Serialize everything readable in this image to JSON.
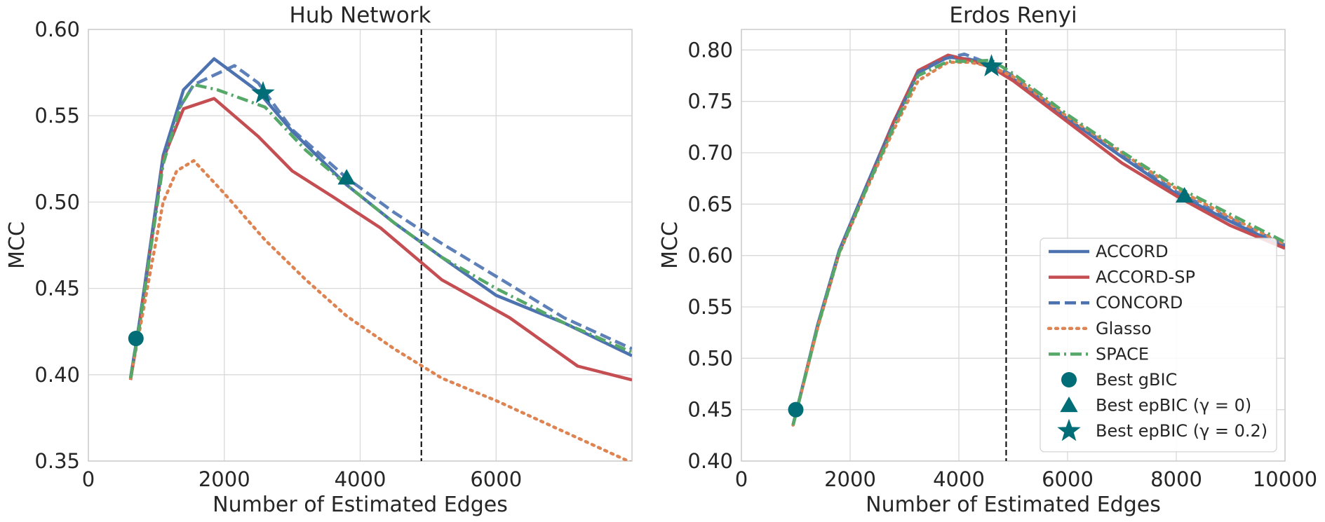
{
  "chart_data": [
    {
      "type": "line",
      "title": "Hub Network",
      "xlabel": "Number of Estimated Edges",
      "ylabel": "MCC",
      "xlim": [
        0,
        8000
      ],
      "ylim": [
        0.35,
        0.6
      ],
      "xticks": [
        0,
        2000,
        4000,
        6000
      ],
      "xtick_labels": [
        "0",
        "2000",
        "4000",
        "6000"
      ],
      "yticks": [
        0.35,
        0.4,
        0.45,
        0.5,
        0.55,
        0.6
      ],
      "ytick_labels": [
        "0.35",
        "0.40",
        "0.45",
        "0.50",
        "0.55",
        "0.60"
      ],
      "grid": true,
      "vline": 4900,
      "series": [
        {
          "name": "ACCORD",
          "color": "#4c72b0",
          "style": "solid",
          "x": [
            620,
            750,
            1100,
            1400,
            1850,
            2500,
            3000,
            3800,
            4500,
            5200,
            6000,
            7000,
            8000
          ],
          "y": [
            0.398,
            0.43,
            0.527,
            0.565,
            0.583,
            0.564,
            0.541,
            0.51,
            0.488,
            0.468,
            0.446,
            0.43,
            0.411
          ]
        },
        {
          "name": "ACCORD-SP",
          "color": "#c44e52",
          "style": "solid",
          "x": [
            620,
            750,
            1100,
            1400,
            1850,
            2500,
            3000,
            3600,
            4300,
            5200,
            6200,
            7200,
            8000
          ],
          "y": [
            0.397,
            0.428,
            0.525,
            0.554,
            0.56,
            0.538,
            0.518,
            0.503,
            0.485,
            0.455,
            0.433,
            0.405,
            0.397
          ]
        },
        {
          "name": "CONCORD",
          "color": "#4c72b0",
          "style": "dashed",
          "x": [
            620,
            750,
            1100,
            1300,
            1550,
            2150,
            2500,
            3000,
            3800,
            4500,
            5200,
            6000,
            7000,
            8000
          ],
          "y": [
            0.398,
            0.43,
            0.525,
            0.552,
            0.568,
            0.579,
            0.569,
            0.542,
            0.514,
            0.494,
            0.476,
            0.457,
            0.433,
            0.415
          ]
        },
        {
          "name": "Glasso",
          "color": "#dd8452",
          "style": "dotted",
          "x": [
            620,
            750,
            1100,
            1300,
            1550,
            2000,
            2600,
            3200,
            3800,
            4500,
            5200,
            6000,
            7000,
            8000
          ],
          "y": [
            0.398,
            0.425,
            0.5,
            0.518,
            0.524,
            0.505,
            0.478,
            0.455,
            0.434,
            0.415,
            0.398,
            0.385,
            0.367,
            0.349
          ]
        },
        {
          "name": "SPACE",
          "color": "#55a868",
          "style": "dashdot",
          "x": [
            620,
            750,
            1100,
            1350,
            1550,
            1900,
            2600,
            3200,
            3800,
            4500,
            5200,
            6000,
            7000,
            8000
          ],
          "y": [
            0.398,
            0.428,
            0.522,
            0.555,
            0.568,
            0.565,
            0.555,
            0.53,
            0.51,
            0.488,
            0.468,
            0.45,
            0.43,
            0.413
          ]
        }
      ],
      "markers": [
        {
          "name": "Best gBIC",
          "shape": "circle",
          "x": 700,
          "y": 0.421
        },
        {
          "name": "Best epBIC (γ = 0)",
          "shape": "triangle",
          "x": 3800,
          "y": 0.514
        },
        {
          "name": "Best epBIC (γ = 0.2)",
          "shape": "star",
          "x": 2570,
          "y": 0.563
        }
      ]
    },
    {
      "type": "line",
      "title": "Erdos Renyi",
      "xlabel": "Number of Estimated Edges",
      "ylabel": "MCC",
      "xlim": [
        0,
        10000
      ],
      "ylim": [
        0.4,
        0.82
      ],
      "xticks": [
        0,
        2000,
        4000,
        6000,
        8000,
        10000
      ],
      "xtick_labels": [
        "0",
        "2000",
        "4000",
        "6000",
        "8000",
        "10000"
      ],
      "yticks": [
        0.4,
        0.45,
        0.5,
        0.55,
        0.6,
        0.65,
        0.7,
        0.75,
        0.8
      ],
      "ytick_labels": [
        "0.40",
        "0.45",
        "0.50",
        "0.55",
        "0.60",
        "0.65",
        "0.70",
        "0.75",
        "0.80"
      ],
      "grid": true,
      "vline": 4870,
      "legend_position": "lower-right",
      "series": [
        {
          "name": "ACCORD",
          "color": "#4c72b0",
          "style": "solid",
          "x": [
            950,
            1400,
            1800,
            2300,
            2800,
            3250,
            3800,
            4200,
            4600,
            5000,
            6000,
            7000,
            8000,
            9000,
            10000
          ],
          "y": [
            0.435,
            0.532,
            0.605,
            0.668,
            0.73,
            0.778,
            0.793,
            0.791,
            0.785,
            0.772,
            0.733,
            0.696,
            0.66,
            0.633,
            0.608
          ]
        },
        {
          "name": "ACCORD-SP",
          "color": "#c44e52",
          "style": "solid",
          "x": [
            950,
            1400,
            1800,
            2300,
            2800,
            3250,
            3800,
            4200,
            4600,
            5000,
            6000,
            7000,
            8000,
            9000,
            10000
          ],
          "y": [
            0.435,
            0.53,
            0.603,
            0.666,
            0.73,
            0.78,
            0.795,
            0.79,
            0.783,
            0.77,
            0.73,
            0.69,
            0.658,
            0.629,
            0.607
          ]
        },
        {
          "name": "CONCORD",
          "color": "#4c72b0",
          "style": "dashed",
          "x": [
            950,
            1400,
            1800,
            2300,
            2800,
            3250,
            3700,
            4100,
            4600,
            5000,
            6000,
            7000,
            8000,
            9000,
            10000
          ],
          "y": [
            0.435,
            0.531,
            0.604,
            0.667,
            0.728,
            0.778,
            0.791,
            0.796,
            0.786,
            0.775,
            0.734,
            0.698,
            0.662,
            0.636,
            0.61
          ]
        },
        {
          "name": "Glasso",
          "color": "#dd8452",
          "style": "dotted",
          "x": [
            950,
            1400,
            1800,
            2300,
            2800,
            3250,
            3800,
            4200,
            4600,
            5000,
            6000,
            7000,
            8000,
            9000,
            10000
          ],
          "y": [
            0.435,
            0.529,
            0.602,
            0.664,
            0.722,
            0.77,
            0.788,
            0.788,
            0.784,
            0.774,
            0.735,
            0.7,
            0.665,
            0.637,
            0.611
          ]
        },
        {
          "name": "SPACE",
          "color": "#55a868",
          "style": "dashdot",
          "x": [
            950,
            1400,
            1800,
            2300,
            2800,
            3250,
            3800,
            4200,
            4600,
            5000,
            6000,
            7000,
            8000,
            9000,
            10000
          ],
          "y": [
            0.435,
            0.53,
            0.603,
            0.665,
            0.725,
            0.775,
            0.789,
            0.789,
            0.79,
            0.777,
            0.737,
            0.701,
            0.667,
            0.64,
            0.613
          ]
        }
      ],
      "markers": [
        {
          "name": "Best gBIC",
          "shape": "circle",
          "x": 1000,
          "y": 0.45
        },
        {
          "name": "Best epBIC (γ = 0)",
          "shape": "triangle",
          "x": 8150,
          "y": 0.658
        },
        {
          "name": "Best epBIC (γ = 0.2)",
          "shape": "star",
          "x": 4600,
          "y": 0.784
        }
      ]
    }
  ],
  "legend": {
    "items": [
      {
        "label": "ACCORD",
        "kind": "line",
        "color": "#4c72b0",
        "style": "solid"
      },
      {
        "label": "ACCORD-SP",
        "kind": "line",
        "color": "#c44e52",
        "style": "solid"
      },
      {
        "label": "CONCORD",
        "kind": "line",
        "color": "#4c72b0",
        "style": "dashed"
      },
      {
        "label": "Glasso",
        "kind": "line",
        "color": "#dd8452",
        "style": "dotted"
      },
      {
        "label": "SPACE",
        "kind": "line",
        "color": "#55a868",
        "style": "dashdot"
      },
      {
        "label": "Best gBIC",
        "kind": "marker",
        "shape": "circle",
        "color": "#006d77"
      },
      {
        "label": "Best epBIC (γ = 0)",
        "kind": "marker",
        "shape": "triangle",
        "color": "#006d77"
      },
      {
        "label": "Best epBIC (γ = 0.2)",
        "kind": "marker",
        "shape": "star",
        "color": "#006d77"
      }
    ]
  },
  "colors": {
    "marker": "#006d77",
    "grid": "#d9d9d9",
    "spine": "#cccccc",
    "vline": "#000000"
  }
}
